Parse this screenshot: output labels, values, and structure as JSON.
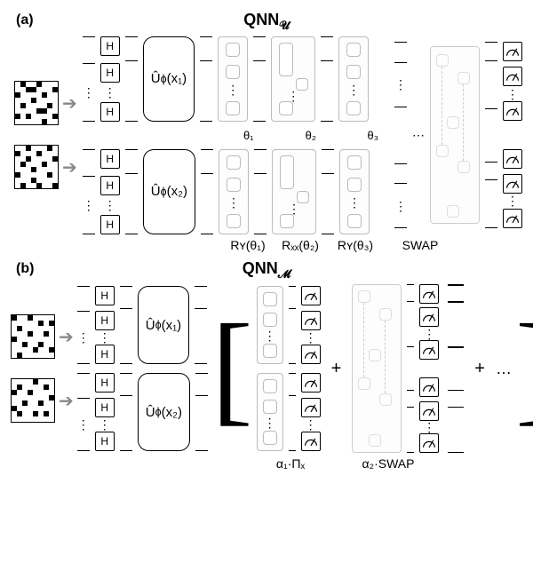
{
  "panel_a": {
    "label": "(a)",
    "title_main": "QNN",
    "title_sub": "𝓤",
    "encoders": [
      {
        "op": "Û",
        "sub": "ϕ",
        "arg": "(x₁)"
      },
      {
        "op": "Û",
        "sub": "ϕ",
        "arg": "(x₂)"
      }
    ],
    "hadamard": "H",
    "theta_top_labels": [
      "θ₁",
      "θ₂",
      "θ₃"
    ],
    "bottom_labels": [
      "Rʏ(θ₁)",
      "Rₓₓ(θ₂)",
      "Rʏ(θ₃)",
      "SWAP"
    ],
    "dots": "⋮",
    "hdots": "⋯"
  },
  "panel_b": {
    "label": "(b)",
    "title_main": "QNN",
    "title_sub": "𝓜",
    "encoders": [
      {
        "op": "Û",
        "sub": "ϕ",
        "arg": "(x₁)"
      },
      {
        "op": "Û",
        "sub": "ϕ",
        "arg": "(x₂)"
      }
    ],
    "hadamard": "H",
    "bottom_labels": [
      "α₁·Πₓ",
      "α₂·SWAP"
    ],
    "plus": "+",
    "ellipsis": "…",
    "brackets": {
      "open": "[",
      "close": "]"
    }
  },
  "colors": {
    "light_box_border": "#bbbbbb",
    "wire": "#000000",
    "background": "#ffffff"
  },
  "pixel_patterns": {
    "p1": [
      [
        0,
        1,
        0,
        0,
        1,
        0,
        0,
        0
      ],
      [
        0,
        0,
        1,
        1,
        0,
        0,
        0,
        1
      ],
      [
        1,
        0,
        0,
        0,
        0,
        1,
        0,
        0
      ],
      [
        0,
        0,
        0,
        1,
        0,
        0,
        0,
        0
      ],
      [
        0,
        1,
        0,
        0,
        0,
        0,
        1,
        0
      ],
      [
        0,
        0,
        0,
        0,
        1,
        1,
        0,
        0
      ],
      [
        1,
        0,
        1,
        0,
        0,
        0,
        0,
        1
      ],
      [
        0,
        0,
        0,
        0,
        0,
        1,
        0,
        0
      ]
    ],
    "p2": [
      [
        0,
        0,
        1,
        0,
        0,
        0,
        1,
        0
      ],
      [
        1,
        0,
        0,
        0,
        1,
        0,
        0,
        0
      ],
      [
        0,
        0,
        1,
        0,
        0,
        0,
        0,
        1
      ],
      [
        0,
        1,
        0,
        0,
        0,
        1,
        0,
        0
      ],
      [
        0,
        0,
        0,
        1,
        0,
        0,
        0,
        0
      ],
      [
        1,
        0,
        0,
        0,
        0,
        0,
        1,
        0
      ],
      [
        0,
        0,
        0,
        1,
        0,
        0,
        0,
        0
      ],
      [
        0,
        1,
        0,
        0,
        1,
        0,
        0,
        1
      ]
    ],
    "p3": [
      [
        1,
        0,
        0,
        1,
        0,
        0,
        0,
        0
      ],
      [
        0,
        0,
        0,
        0,
        0,
        1,
        0,
        1
      ],
      [
        0,
        1,
        0,
        0,
        0,
        0,
        0,
        0
      ],
      [
        0,
        0,
        0,
        1,
        0,
        0,
        1,
        0
      ],
      [
        1,
        0,
        0,
        0,
        0,
        0,
        0,
        0
      ],
      [
        0,
        0,
        1,
        0,
        0,
        1,
        0,
        0
      ],
      [
        0,
        0,
        0,
        0,
        1,
        0,
        0,
        1
      ],
      [
        0,
        1,
        0,
        0,
        0,
        0,
        0,
        0
      ]
    ],
    "p4": [
      [
        0,
        0,
        0,
        0,
        1,
        0,
        0,
        0
      ],
      [
        0,
        1,
        0,
        0,
        0,
        0,
        1,
        0
      ],
      [
        1,
        0,
        0,
        1,
        0,
        0,
        0,
        0
      ],
      [
        0,
        0,
        0,
        0,
        0,
        0,
        0,
        1
      ],
      [
        0,
        0,
        1,
        0,
        0,
        1,
        0,
        0
      ],
      [
        1,
        0,
        0,
        0,
        0,
        0,
        0,
        0
      ],
      [
        0,
        1,
        0,
        0,
        1,
        0,
        1,
        0
      ],
      [
        0,
        0,
        0,
        0,
        0,
        0,
        0,
        0
      ]
    ]
  }
}
